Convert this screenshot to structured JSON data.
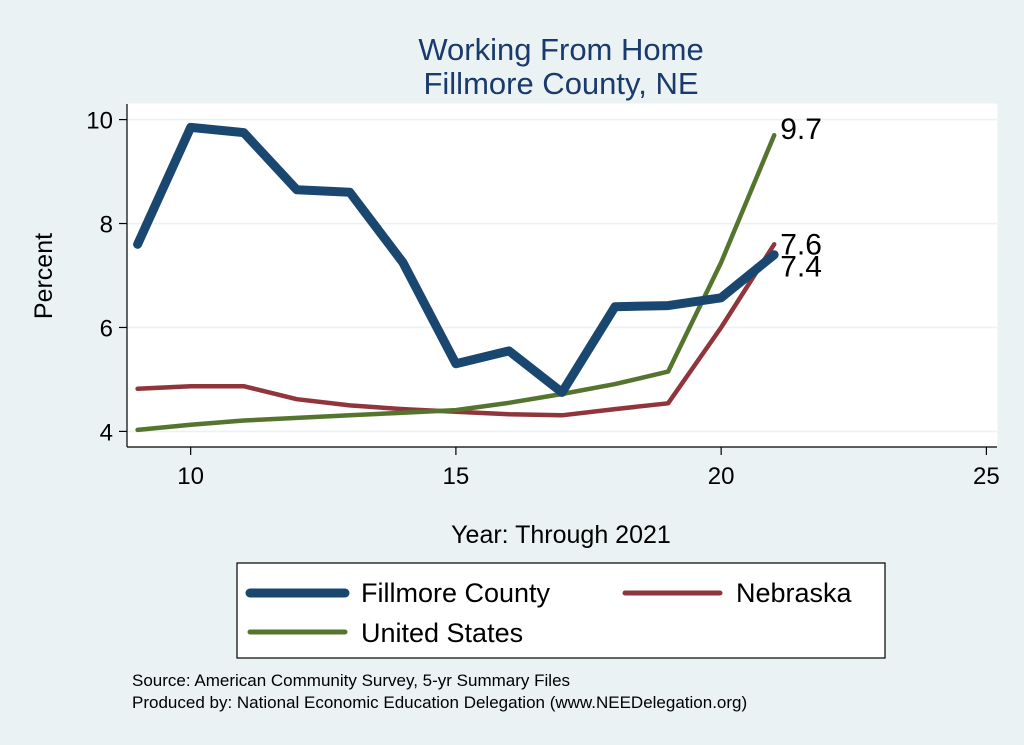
{
  "colors": {
    "background": "#eaf2f3",
    "plot_background": "#ffffff",
    "title": "#1a3a6b",
    "fillmore": "#1a476f",
    "nebraska": "#90353b",
    "united_states": "#55752f"
  },
  "chart_data": {
    "type": "line",
    "title": "Working From Home",
    "subtitle": "Fillmore County, NE",
    "xlabel": "Year: Through 2021",
    "ylabel": "Percent",
    "xlim": [
      8.8,
      25.2
    ],
    "ylim": [
      3.7,
      10.3
    ],
    "xticks": [
      10,
      15,
      20,
      25
    ],
    "yticks": [
      4,
      6,
      8,
      10
    ],
    "grid": true,
    "legend_position": "bottom",
    "series": [
      {
        "name": "Fillmore County",
        "color_key": "fillmore",
        "x": [
          9,
          10,
          11,
          12,
          13,
          14,
          15,
          16,
          17,
          18,
          19,
          20,
          21
        ],
        "y": [
          7.6,
          9.85,
          9.75,
          8.65,
          8.6,
          7.25,
          5.3,
          5.55,
          4.75,
          6.4,
          6.42,
          6.57,
          7.4
        ],
        "end_label": "7.4"
      },
      {
        "name": "Nebraska",
        "color_key": "nebraska",
        "x": [
          9,
          10,
          11,
          12,
          13,
          14,
          15,
          16,
          17,
          18,
          19,
          20,
          21
        ],
        "y": [
          4.82,
          4.87,
          4.87,
          4.62,
          4.5,
          4.43,
          4.38,
          4.33,
          4.31,
          4.43,
          4.54,
          6.0,
          7.6
        ],
        "end_label": "7.6"
      },
      {
        "name": "United States",
        "color_key": "united_states",
        "x": [
          9,
          10,
          11,
          12,
          13,
          14,
          15,
          16,
          17,
          18,
          19,
          20,
          21
        ],
        "y": [
          4.03,
          4.13,
          4.21,
          4.26,
          4.31,
          4.36,
          4.41,
          4.55,
          4.72,
          4.91,
          5.15,
          7.25,
          9.7
        ],
        "end_label": "9.7"
      }
    ]
  },
  "notes": {
    "source": "Source: American Community Survey, 5-yr Summary Files",
    "produced_by": "Produced by: National Economic Education Delegation (www.NEEDelegation.org)"
  }
}
